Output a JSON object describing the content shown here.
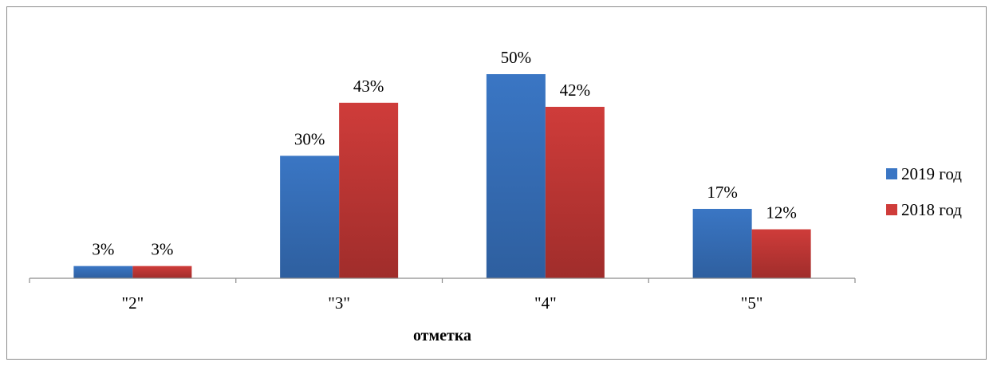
{
  "chart_data": {
    "type": "bar",
    "categories": [
      "\"2\"",
      "\"3\"",
      "\"4\"",
      "\"5\""
    ],
    "series": [
      {
        "name": "2019 год",
        "values": [
          3,
          30,
          50,
          17
        ],
        "labels": [
          "3%",
          "30%",
          "50%",
          "17%"
        ],
        "color": "#3a76c4",
        "color_dark": "#2e5f9f"
      },
      {
        "name": "2018 год",
        "values": [
          3,
          43,
          42,
          12
        ],
        "labels": [
          "3%",
          "43%",
          "42%",
          "12%"
        ],
        "color": "#cf3c3a",
        "color_dark": "#a02d2b"
      }
    ],
    "xlabel": "отметка",
    "ylabel": "",
    "ylim": [
      0,
      50
    ],
    "grid": false,
    "legend": "right"
  }
}
